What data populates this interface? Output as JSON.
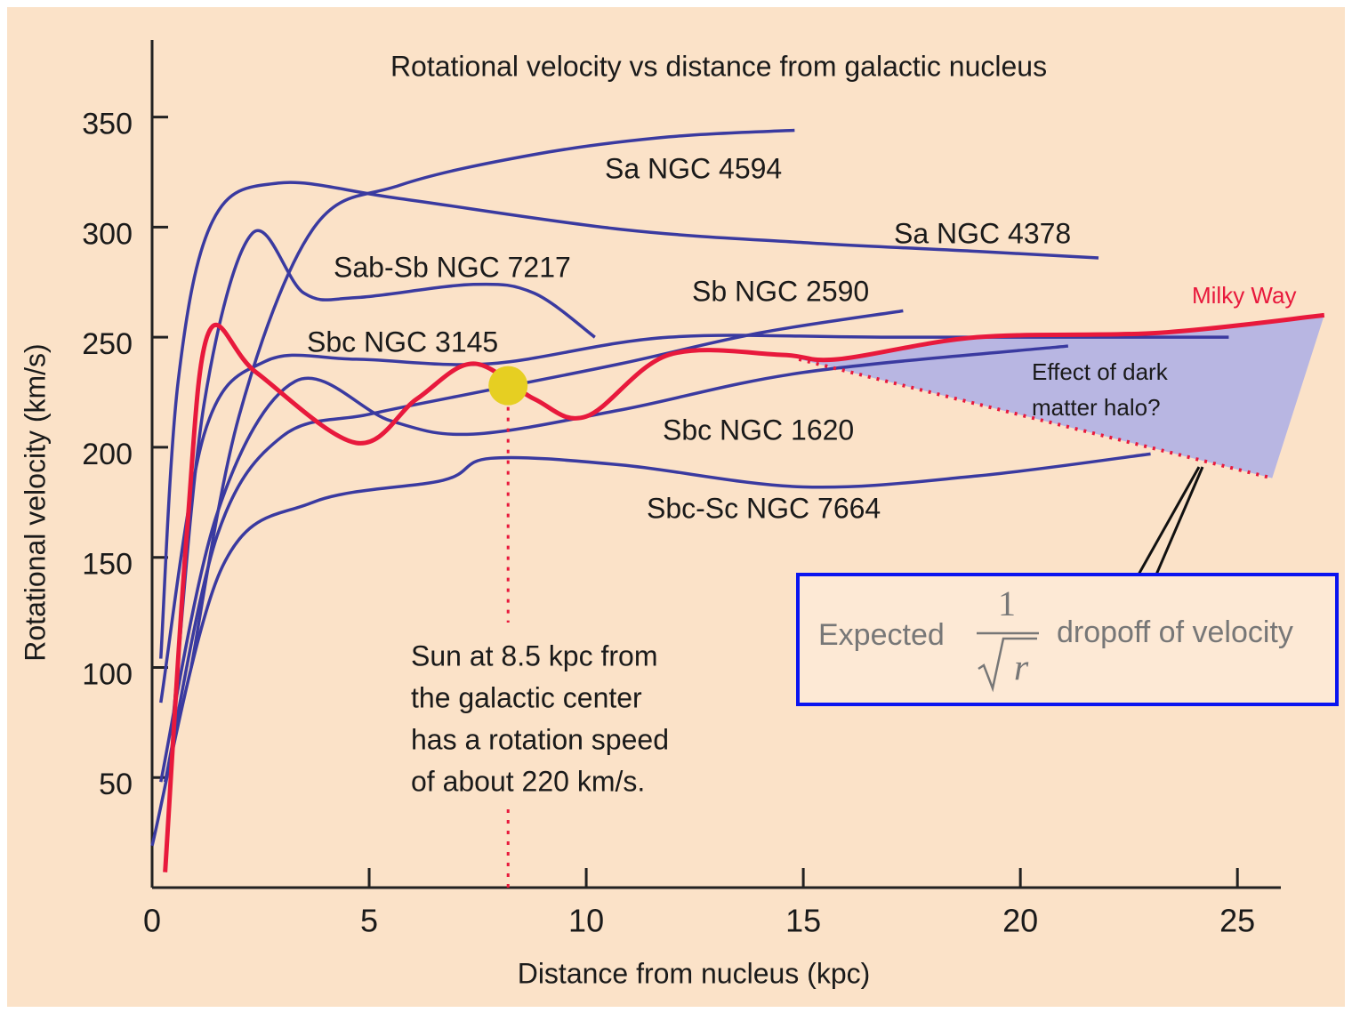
{
  "chart_data": {
    "type": "line",
    "title": "Rotational velocity vs distance from galactic nucleus",
    "xlabel": "Distance from nucleus (kpc)",
    "ylabel": "Rotational velocity (km/s)",
    "xlim": [
      0,
      26
    ],
    "ylim": [
      0,
      385
    ],
    "xticks": [
      0,
      5,
      10,
      15,
      20,
      25
    ],
    "yticks": [
      50,
      100,
      150,
      200,
      250,
      300,
      350
    ],
    "series": [
      {
        "name": "Sa NGC 4594",
        "color": "#3a3aa0",
        "x": [
          0.9,
          2,
          3.7,
          5.7,
          8.8,
          11.9,
          14.8
        ],
        "values": [
          100,
          214,
          299,
          319,
          333,
          341,
          344
        ]
      },
      {
        "name": "Sa NGC 4378",
        "color": "#3a3aa0",
        "x": [
          0.2,
          0.6,
          1.4,
          2.9,
          5.7,
          10.8,
          15,
          19,
          21.8
        ],
        "values": [
          104,
          230,
          303,
          320,
          313,
          299,
          293,
          289,
          286
        ]
      },
      {
        "name": "Sab-Sb NGC 7217",
        "color": "#3a3aa0",
        "x": [
          0.5,
          1.2,
          2.3,
          3.5,
          4.7,
          7.4,
          8.8,
          10.2
        ],
        "values": [
          80,
          220,
          297,
          270,
          268,
          274,
          270,
          250
        ]
      },
      {
        "name": "Sb NGC 2590",
        "color": "#3a3aa0",
        "x": [
          0.3,
          1.5,
          3,
          5,
          7.5,
          10.8,
          14,
          17.3
        ],
        "values": [
          48,
          160,
          205,
          215,
          225,
          238,
          252,
          262
        ]
      },
      {
        "name": "Sbc NGC 3145",
        "color": "#3a3aa0",
        "x": [
          0.2,
          1.2,
          2.6,
          4.7,
          7.8,
          11.9,
          17,
          24.8
        ],
        "values": [
          84,
          206,
          239,
          240,
          238,
          250,
          250,
          250
        ]
      },
      {
        "name": "Sbc NGC 1620",
        "color": "#3a3aa0",
        "x": [
          0.2,
          1.5,
          3.3,
          5.5,
          7.4,
          10.8,
          15,
          21.1
        ],
        "values": [
          48,
          170,
          230,
          212,
          206,
          217,
          234,
          246
        ]
      },
      {
        "name": "Sbc-Sc NGC 7664",
        "color": "#3a3aa0",
        "x": [
          0,
          1.6,
          3.7,
          6.7,
          7.8,
          10.8,
          15,
          19,
          23
        ],
        "values": [
          19,
          145,
          175,
          185,
          195,
          192,
          182,
          187,
          197
        ]
      },
      {
        "name": "Milky Way",
        "color": "#e8193c",
        "x": [
          0.3,
          0.8,
          1.3,
          2.4,
          4.7,
          6.1,
          7.4,
          8.8,
          10,
          11.9,
          14.5,
          15.8,
          19,
          23.2,
          27
        ],
        "values": [
          7,
          161,
          252,
          234,
          202,
          222,
          238,
          222,
          214,
          242,
          242,
          240,
          250,
          252,
          260
        ]
      }
    ],
    "dropoff": {
      "color": "#e8193c",
      "x": [
        14.9,
        25.8
      ],
      "values": [
        240,
        186
      ]
    },
    "sun": {
      "color": "#e6cf22",
      "x": 8.2,
      "value": 228
    },
    "annotations": {
      "sun_text": [
        "Sun at 8.5 kpc from",
        "the galactic center",
        "has a rotation speed",
        "of about 220 km/s."
      ],
      "halo_text": [
        "Effect of dark",
        "matter halo?"
      ],
      "expected": {
        "prefix": "Expected",
        "numerator": "1",
        "radicand": "r",
        "suffix": "dropoff of velocity"
      }
    }
  }
}
